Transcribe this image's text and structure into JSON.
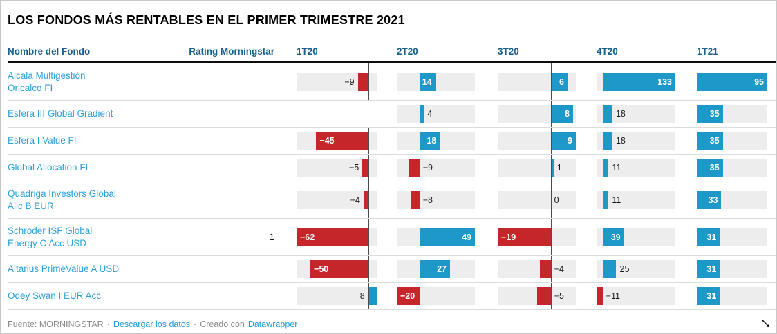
{
  "chart_data": {
    "type": "bar",
    "orientation": "horizontal",
    "title": "LOS FONDOS MÁS RENTABLES EN EL PRIMER TRIMESTRE 2021",
    "categories": [
      "1T20",
      "2T20",
      "3T20",
      "4T20",
      "1T21"
    ],
    "legend": "none",
    "rows": [
      {
        "name_lines": [
          "Alcalá Multigestión",
          "Oricalco FI"
        ],
        "rating": null,
        "values": [
          -9,
          14,
          6,
          133,
          95
        ]
      },
      {
        "name_lines": [
          "Esfera III Global Gradient"
        ],
        "rating": null,
        "values": [
          null,
          4,
          8,
          18,
          35
        ]
      },
      {
        "name_lines": [
          "Esfera I Value FI"
        ],
        "rating": null,
        "values": [
          -45,
          18,
          9,
          18,
          35
        ]
      },
      {
        "name_lines": [
          "Global Allocation FI"
        ],
        "rating": null,
        "values": [
          -5,
          -9,
          1,
          11,
          35
        ]
      },
      {
        "name_lines": [
          "Quadriga Investors Global",
          "Allc B EUR"
        ],
        "rating": null,
        "values": [
          -4,
          -8,
          0,
          11,
          33
        ]
      },
      {
        "name_lines": [
          "Schroder ISF Global",
          "Energy C Acc USD"
        ],
        "rating": 1,
        "values": [
          -62,
          49,
          -19,
          39,
          31
        ]
      },
      {
        "name_lines": [
          "Altarius PrimeValue A USD"
        ],
        "rating": null,
        "values": [
          -50,
          27,
          -4,
          25,
          31
        ]
      },
      {
        "name_lines": [
          "Odey Swan I EUR Acc"
        ],
        "rating": null,
        "values": [
          8,
          -20,
          -5,
          -11,
          31
        ]
      }
    ]
  },
  "columns": {
    "fund": "Nombre del Fondo",
    "rating": "Rating Morningstar"
  },
  "footer": {
    "source": "Fuente: MORNINGSTAR",
    "sep": "·",
    "download": "Descargar los datos",
    "created": "Creado con",
    "tool": "Datawrapper"
  },
  "colors": {
    "positive": "#1D98C8",
    "negative": "#C4262A",
    "track": "#EDEDED",
    "header_text": "#18608A",
    "fund_name": "#2CA1DA",
    "link": "#2499D6",
    "zero_line": "#4D4D4D"
  },
  "icons": {
    "resize_handle": "diagonal-resize-arrow"
  }
}
